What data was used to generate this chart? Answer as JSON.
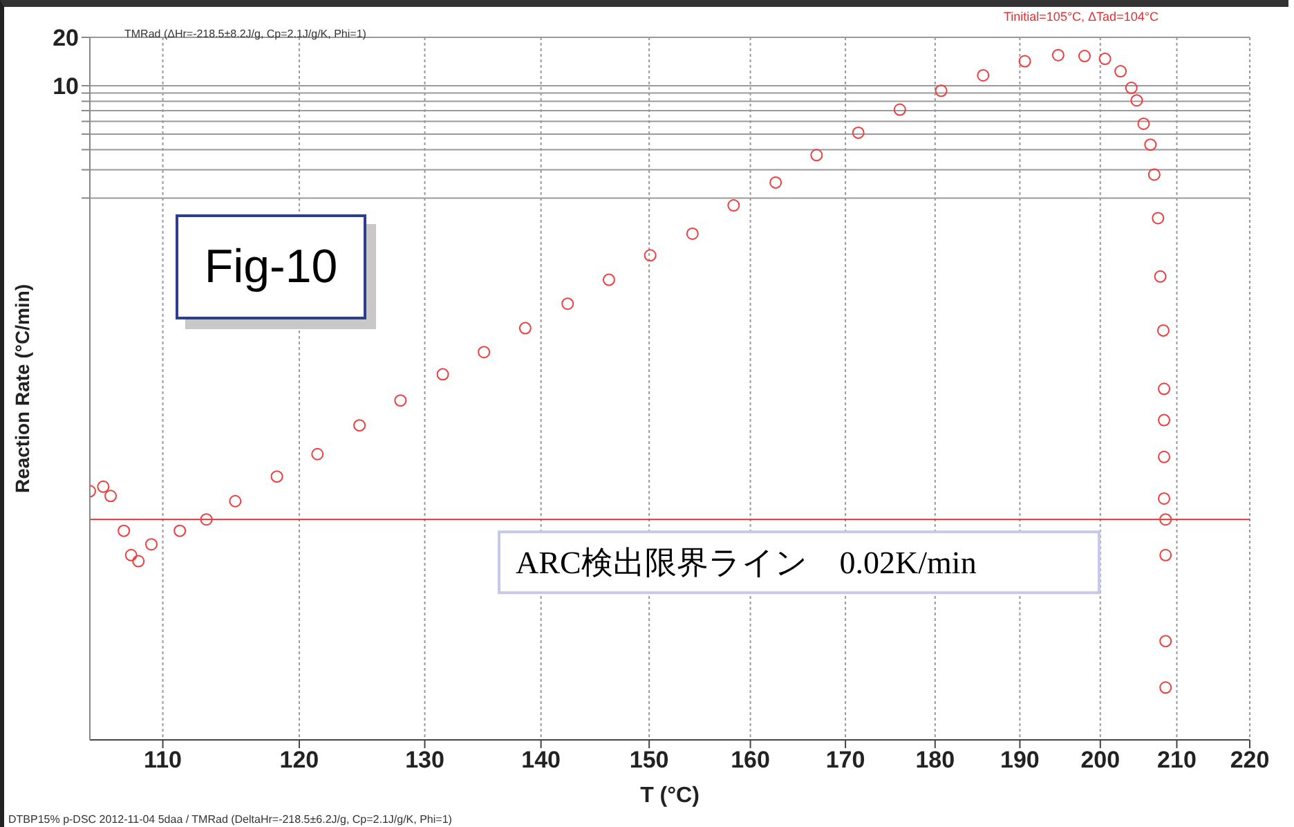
{
  "chart_data": {
    "type": "scatter",
    "xlabel": "T (°C)",
    "ylabel": "Reaction Rate (°C/min)",
    "annotations": [
      "Fig-10",
      "TMRad (ΔHr=-218.5±8.2J/g, Cp=2.1J/g/K, Phi=1)",
      "Tinitial=105°C, ΔTad=104°C",
      "DTBP15% p-DSC 2012-11-04 5daa / TMRad (DeltaHr=-218.5±6.2J/g, Cp=2.1J/g/K, Phi=1)"
    ],
    "x": [
      105.0,
      105.9,
      106.4,
      107.3,
      107.8,
      108.3,
      109.2,
      111.2,
      113.1,
      115.2,
      118.3,
      121.4,
      124.7,
      128.0,
      131.5,
      135.0,
      138.6,
      142.4,
      146.2,
      150.1,
      154.2,
      158.3,
      162.6,
      166.9,
      171.4,
      176.0,
      180.7,
      185.6,
      190.6,
      194.7,
      198.0,
      200.6,
      202.6,
      204.0,
      204.7,
      205.6,
      206.5,
      207.0,
      207.5,
      207.8,
      208.2,
      208.3,
      208.3,
      208.3,
      208.3,
      208.5,
      208.5,
      208.5,
      208.5
    ],
    "series": [
      {
        "color": "#f03c3c",
        "values": [
          0.03,
          0.032,
          0.028,
          0.017,
          0.012,
          0.011,
          0.014,
          0.017,
          0.02,
          0.026,
          0.037,
          0.051,
          0.077,
          0.11,
          0.16,
          0.22,
          0.31,
          0.44,
          0.62,
          0.88,
          1.2,
          1.8,
          2.5,
          3.7,
          5.1,
          7.1,
          9.3,
          11.6,
          14.2,
          15.5,
          15.3,
          14.7,
          12.3,
          9.7,
          8.1,
          5.8,
          4.3,
          2.8,
          1.5,
          0.65,
          0.3,
          0.13,
          0.083,
          0.049,
          0.027,
          0.02,
          0.012,
          0.0035,
          0.0018
        ]
      }
    ],
    "log": "xy",
    "xlim": [
      105,
      220
    ],
    "xticks": [
      110,
      120,
      130,
      140,
      150,
      160,
      170,
      180,
      190,
      200,
      210,
      220
    ],
    "ylim": [
      0.00085,
      20
    ],
    "yticks": [
      20,
      10,
      {
        "value": 9,
        "label": null
      },
      {
        "value": 8,
        "label": null
      },
      {
        "value": 7,
        "label": null
      },
      {
        "value": 6,
        "label": null
      },
      {
        "value": 5,
        "label": null
      },
      {
        "value": 4,
        "label": null
      },
      {
        "value": 3,
        "label": null
      },
      {
        "value": 2,
        "label": null
      }
    ],
    "grid": true,
    "marker": "circle",
    "ref_lines": [
      {
        "axis": "y",
        "value": 0.02,
        "label": "ARC検出限界ライン　0.02K/min",
        "color": "#e03030"
      }
    ]
  }
}
